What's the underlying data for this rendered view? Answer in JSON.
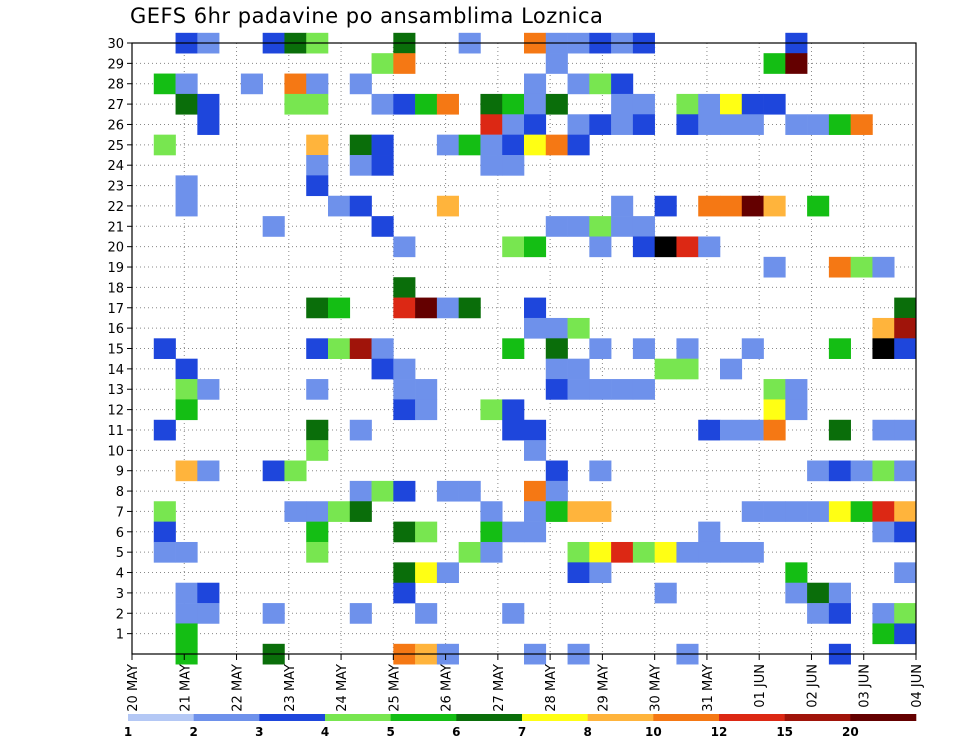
{
  "chart_data": {
    "type": "heatmap",
    "title": "GEFS 6hr padavine po ansamblima Loznica",
    "xlabel": "",
    "ylabel": "",
    "y_ticks": [
      1,
      2,
      3,
      4,
      5,
      6,
      7,
      8,
      9,
      10,
      11,
      12,
      13,
      14,
      15,
      16,
      17,
      18,
      19,
      20,
      21,
      22,
      23,
      24,
      25,
      26,
      27,
      28,
      29,
      30
    ],
    "ylim": [
      0,
      30
    ],
    "x_ticks": [
      "20 MAY",
      "21 MAY",
      "22 MAY",
      "23 MAY",
      "24 MAY",
      "25 MAY",
      "26 MAY",
      "27 MAY",
      "28 MAY",
      "29 MAY",
      "30 MAY",
      "31 MAY",
      "01 JUN",
      "02 JUN",
      "03 JUN",
      "04 JUN"
    ],
    "grid": true,
    "colorbar": {
      "labels": [
        "1",
        "2",
        "3",
        "4",
        "5",
        "6",
        "7",
        "8",
        "10",
        "12",
        "15",
        "20"
      ],
      "colors": [
        "#b4c8f5",
        "#6e91eb",
        "#1e46dc",
        "#78e650",
        "#14be14",
        "#0a6e0a",
        "#ffff14",
        "#ffb43c",
        "#f57814",
        "#dc2814",
        "#a0140a",
        "#640000"
      ],
      "placement": "bottom"
    },
    "cells": [
      [
        2,
        30,
        2
      ],
      [
        3,
        30,
        1
      ],
      [
        6,
        30,
        2
      ],
      [
        7,
        30,
        5
      ],
      [
        8,
        30,
        3
      ],
      [
        12,
        30,
        5
      ],
      [
        15,
        30,
        1
      ],
      [
        18,
        30,
        8
      ],
      [
        19,
        30,
        1
      ],
      [
        20,
        30,
        1
      ],
      [
        21,
        30,
        2
      ],
      [
        22,
        30,
        1
      ],
      [
        23,
        30,
        2
      ],
      [
        30,
        30,
        2
      ],
      [
        11,
        29,
        3
      ],
      [
        12,
        29,
        8
      ],
      [
        19,
        29,
        1
      ],
      [
        29,
        29,
        4
      ],
      [
        30,
        29,
        11
      ],
      [
        1,
        28,
        4
      ],
      [
        2,
        28,
        1
      ],
      [
        5,
        28,
        1
      ],
      [
        7,
        28,
        8
      ],
      [
        8,
        28,
        1
      ],
      [
        10,
        28,
        1
      ],
      [
        18,
        28,
        1
      ],
      [
        20,
        28,
        1
      ],
      [
        21,
        28,
        3
      ],
      [
        22,
        28,
        2
      ],
      [
        2,
        27,
        5
      ],
      [
        3,
        27,
        2
      ],
      [
        7,
        27,
        3
      ],
      [
        8,
        27,
        3
      ],
      [
        11,
        27,
        1
      ],
      [
        12,
        27,
        2
      ],
      [
        13,
        27,
        4
      ],
      [
        14,
        27,
        8
      ],
      [
        16,
        27,
        5
      ],
      [
        17,
        27,
        4
      ],
      [
        18,
        27,
        1
      ],
      [
        19,
        27,
        5
      ],
      [
        22,
        27,
        1
      ],
      [
        23,
        27,
        1
      ],
      [
        25,
        27,
        3
      ],
      [
        26,
        27,
        1
      ],
      [
        27,
        27,
        6
      ],
      [
        28,
        27,
        2
      ],
      [
        29,
        27,
        2
      ],
      [
        3,
        26,
        2
      ],
      [
        16,
        26,
        9
      ],
      [
        17,
        26,
        1
      ],
      [
        18,
        26,
        2
      ],
      [
        20,
        26,
        1
      ],
      [
        21,
        26,
        2
      ],
      [
        22,
        26,
        1
      ],
      [
        23,
        26,
        2
      ],
      [
        25,
        26,
        2
      ],
      [
        26,
        26,
        1
      ],
      [
        27,
        26,
        1
      ],
      [
        28,
        26,
        1
      ],
      [
        30,
        26,
        1
      ],
      [
        31,
        26,
        1
      ],
      [
        32,
        26,
        4
      ],
      [
        33,
        26,
        8
      ],
      [
        1,
        25,
        3
      ],
      [
        8,
        25,
        7
      ],
      [
        10,
        25,
        5
      ],
      [
        11,
        25,
        2
      ],
      [
        14,
        25,
        1
      ],
      [
        15,
        25,
        4
      ],
      [
        16,
        25,
        1
      ],
      [
        17,
        25,
        2
      ],
      [
        18,
        25,
        6
      ],
      [
        19,
        25,
        8
      ],
      [
        20,
        25,
        2
      ],
      [
        8,
        24,
        1
      ],
      [
        10,
        24,
        1
      ],
      [
        11,
        24,
        2
      ],
      [
        16,
        24,
        1
      ],
      [
        17,
        24,
        1
      ],
      [
        2,
        23,
        1
      ],
      [
        8,
        23,
        2
      ],
      [
        2,
        22,
        1
      ],
      [
        9,
        22,
        1
      ],
      [
        10,
        22,
        2
      ],
      [
        14,
        22,
        7
      ],
      [
        22,
        22,
        1
      ],
      [
        24,
        22,
        2
      ],
      [
        26,
        22,
        8
      ],
      [
        27,
        22,
        8
      ],
      [
        28,
        22,
        11
      ],
      [
        29,
        22,
        7
      ],
      [
        31,
        22,
        4
      ],
      [
        6,
        21,
        1
      ],
      [
        11,
        21,
        2
      ],
      [
        19,
        21,
        1
      ],
      [
        20,
        21,
        1
      ],
      [
        21,
        21,
        3
      ],
      [
        22,
        21,
        1
      ],
      [
        23,
        21,
        1
      ],
      [
        12,
        20,
        1
      ],
      [
        17,
        20,
        3
      ],
      [
        18,
        20,
        4
      ],
      [
        21,
        20,
        1
      ],
      [
        23,
        20,
        2
      ],
      [
        24,
        20,
        12
      ],
      [
        25,
        20,
        9
      ],
      [
        26,
        20,
        1
      ],
      [
        29,
        19,
        1
      ],
      [
        32,
        19,
        8
      ],
      [
        33,
        19,
        3
      ],
      [
        34,
        19,
        1
      ],
      [
        12,
        18,
        5
      ],
      [
        8,
        17,
        5
      ],
      [
        9,
        17,
        4
      ],
      [
        12,
        17,
        9
      ],
      [
        13,
        17,
        11
      ],
      [
        14,
        17,
        1
      ],
      [
        15,
        17,
        5
      ],
      [
        18,
        17,
        2
      ],
      [
        35,
        17,
        5
      ],
      [
        18,
        16,
        1
      ],
      [
        19,
        16,
        1
      ],
      [
        20,
        16,
        3
      ],
      [
        34,
        16,
        7
      ],
      [
        35,
        16,
        10
      ],
      [
        1,
        15,
        2
      ],
      [
        8,
        15,
        2
      ],
      [
        9,
        15,
        3
      ],
      [
        10,
        15,
        10
      ],
      [
        11,
        15,
        1
      ],
      [
        17,
        15,
        4
      ],
      [
        19,
        15,
        5
      ],
      [
        21,
        15,
        1
      ],
      [
        23,
        15,
        1
      ],
      [
        25,
        15,
        1
      ],
      [
        28,
        15,
        1
      ],
      [
        32,
        15,
        4
      ],
      [
        34,
        15,
        12
      ],
      [
        35,
        15,
        2
      ],
      [
        2,
        14,
        2
      ],
      [
        11,
        14,
        2
      ],
      [
        12,
        14,
        1
      ],
      [
        19,
        14,
        1
      ],
      [
        20,
        14,
        1
      ],
      [
        24,
        14,
        3
      ],
      [
        25,
        14,
        3
      ],
      [
        27,
        14,
        1
      ],
      [
        2,
        13,
        3
      ],
      [
        3,
        13,
        1
      ],
      [
        8,
        13,
        1
      ],
      [
        12,
        13,
        1
      ],
      [
        13,
        13,
        1
      ],
      [
        19,
        13,
        2
      ],
      [
        20,
        13,
        1
      ],
      [
        21,
        13,
        1
      ],
      [
        22,
        13,
        1
      ],
      [
        23,
        13,
        1
      ],
      [
        29,
        13,
        3
      ],
      [
        30,
        13,
        1
      ],
      [
        2,
        12,
        4
      ],
      [
        12,
        12,
        2
      ],
      [
        13,
        12,
        1
      ],
      [
        16,
        12,
        3
      ],
      [
        17,
        12,
        2
      ],
      [
        29,
        12,
        6
      ],
      [
        30,
        12,
        1
      ],
      [
        1,
        11,
        2
      ],
      [
        8,
        11,
        5
      ],
      [
        10,
        11,
        1
      ],
      [
        17,
        11,
        2
      ],
      [
        18,
        11,
        2
      ],
      [
        26,
        11,
        2
      ],
      [
        27,
        11,
        1
      ],
      [
        28,
        11,
        1
      ],
      [
        29,
        11,
        8
      ],
      [
        32,
        11,
        5
      ],
      [
        34,
        11,
        1
      ],
      [
        35,
        11,
        1
      ],
      [
        8,
        10,
        3
      ],
      [
        18,
        10,
        1
      ],
      [
        2,
        9,
        7
      ],
      [
        3,
        9,
        1
      ],
      [
        6,
        9,
        2
      ],
      [
        7,
        9,
        3
      ],
      [
        19,
        9,
        2
      ],
      [
        21,
        9,
        1
      ],
      [
        31,
        9,
        1
      ],
      [
        32,
        9,
        2
      ],
      [
        33,
        9,
        1
      ],
      [
        34,
        9,
        3
      ],
      [
        35,
        9,
        1
      ],
      [
        10,
        8,
        1
      ],
      [
        11,
        8,
        3
      ],
      [
        12,
        8,
        2
      ],
      [
        14,
        8,
        1
      ],
      [
        15,
        8,
        1
      ],
      [
        18,
        8,
        8
      ],
      [
        19,
        8,
        1
      ],
      [
        1,
        7,
        3
      ],
      [
        7,
        7,
        1
      ],
      [
        8,
        7,
        1
      ],
      [
        9,
        7,
        3
      ],
      [
        10,
        7,
        5
      ],
      [
        16,
        7,
        1
      ],
      [
        18,
        7,
        1
      ],
      [
        19,
        7,
        4
      ],
      [
        20,
        7,
        7
      ],
      [
        21,
        7,
        7
      ],
      [
        28,
        7,
        1
      ],
      [
        29,
        7,
        1
      ],
      [
        30,
        7,
        1
      ],
      [
        31,
        7,
        1
      ],
      [
        32,
        7,
        6
      ],
      [
        33,
        7,
        4
      ],
      [
        34,
        7,
        9
      ],
      [
        35,
        7,
        7
      ],
      [
        1,
        6,
        2
      ],
      [
        8,
        6,
        4
      ],
      [
        12,
        6,
        5
      ],
      [
        13,
        6,
        3
      ],
      [
        16,
        6,
        4
      ],
      [
        17,
        6,
        1
      ],
      [
        18,
        6,
        1
      ],
      [
        26,
        6,
        1
      ],
      [
        34,
        6,
        1
      ],
      [
        35,
        6,
        2
      ],
      [
        1,
        5,
        1
      ],
      [
        2,
        5,
        1
      ],
      [
        8,
        5,
        3
      ],
      [
        15,
        5,
        3
      ],
      [
        16,
        5,
        1
      ],
      [
        20,
        5,
        3
      ],
      [
        21,
        5,
        6
      ],
      [
        22,
        5,
        9
      ],
      [
        23,
        5,
        3
      ],
      [
        24,
        5,
        6
      ],
      [
        25,
        5,
        1
      ],
      [
        26,
        5,
        1
      ],
      [
        27,
        5,
        1
      ],
      [
        28,
        5,
        1
      ],
      [
        12,
        4,
        5
      ],
      [
        13,
        4,
        6
      ],
      [
        14,
        4,
        1
      ],
      [
        20,
        4,
        2
      ],
      [
        21,
        4,
        1
      ],
      [
        30,
        4,
        4
      ],
      [
        35,
        4,
        1
      ],
      [
        2,
        3,
        1
      ],
      [
        3,
        3,
        2
      ],
      [
        12,
        3,
        2
      ],
      [
        24,
        3,
        1
      ],
      [
        30,
        3,
        1
      ],
      [
        31,
        3,
        5
      ],
      [
        32,
        3,
        1
      ],
      [
        2,
        2,
        1
      ],
      [
        3,
        2,
        1
      ],
      [
        6,
        2,
        1
      ],
      [
        10,
        2,
        1
      ],
      [
        13,
        2,
        1
      ],
      [
        17,
        2,
        1
      ],
      [
        31,
        2,
        1
      ],
      [
        32,
        2,
        2
      ],
      [
        34,
        2,
        1
      ],
      [
        35,
        2,
        3
      ],
      [
        2,
        1,
        4
      ],
      [
        34,
        1,
        4
      ],
      [
        35,
        1,
        2
      ],
      [
        2,
        0,
        4
      ],
      [
        6,
        0,
        5
      ],
      [
        12,
        0,
        8
      ],
      [
        13,
        0,
        7
      ],
      [
        14,
        0,
        1
      ],
      [
        18,
        0,
        1
      ],
      [
        20,
        0,
        1
      ],
      [
        25,
        0,
        1
      ],
      [
        32,
        0,
        2
      ]
    ]
  }
}
